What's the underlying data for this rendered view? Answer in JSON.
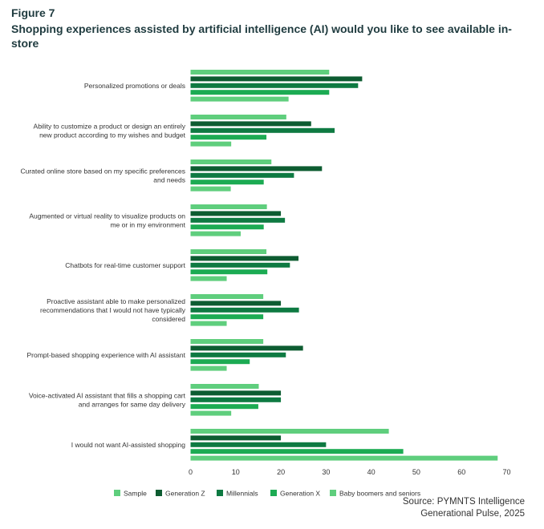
{
  "figure_label": "Figure 7",
  "title": "Shopping experiences assisted by artificial intelligence (AI) would you like to see available in-store",
  "source_line1": "Source: PYMNTS Intelligence",
  "source_line2": "Generational Pulse, 2025",
  "colors": {
    "Sample": "#5fce7d",
    "Generation Z": "#0d5c31",
    "Millennials": "#0e7a42",
    "Generation X": "#1cab53",
    "Baby boomers and seniors": "#5fce7d"
  },
  "chart_data": {
    "type": "bar",
    "orientation": "horizontal",
    "categories": [
      [
        "Personalized promotions or deals"
      ],
      [
        "Ability to customize a product or design an entirely",
        "new product according to my wishes and budget"
      ],
      [
        "Curated online store based on my specific preferences",
        "and needs"
      ],
      [
        "Augmented or virtual reality to visualize products on",
        "me or in my environment"
      ],
      [
        "Chatbots for real-time customer support"
      ],
      [
        "Proactive assistant able to make personalized",
        "recommendations that I would not have typically",
        "considered"
      ],
      [
        "Prompt-based shopping experience with AI assistant"
      ],
      [
        "Voice-activated AI assistant that fills a shopping cart",
        "and arranges for same day delivery"
      ],
      [
        "I would not want AI-assisted shopping"
      ]
    ],
    "series": [
      {
        "name": "Sample",
        "values": [
          30.7,
          21.2,
          17.9,
          16.9,
          16.8,
          16.1,
          16.1,
          15.1,
          43.9
        ]
      },
      {
        "name": "Generation Z",
        "values": [
          38.0,
          26.7,
          29.1,
          20.0,
          23.9,
          20.0,
          24.9,
          20.0,
          20.0
        ]
      },
      {
        "name": "Millennials",
        "values": [
          37.1,
          31.9,
          22.9,
          20.9,
          22.0,
          24.0,
          21.1,
          20.0,
          30.0
        ]
      },
      {
        "name": "Generation X",
        "values": [
          30.7,
          16.8,
          16.2,
          16.2,
          17.0,
          16.1,
          13.1,
          15.0,
          47.1
        ]
      },
      {
        "name": "Baby boomers and seniors",
        "values": [
          21.7,
          9.0,
          8.9,
          11.1,
          8.0,
          8.0,
          8.0,
          9.0,
          68.0
        ]
      }
    ],
    "xlim": [
      0,
      70
    ],
    "xticks": [
      0,
      10,
      20,
      30,
      40,
      50,
      60,
      70
    ],
    "grid": false,
    "legend_position": "bottom"
  }
}
